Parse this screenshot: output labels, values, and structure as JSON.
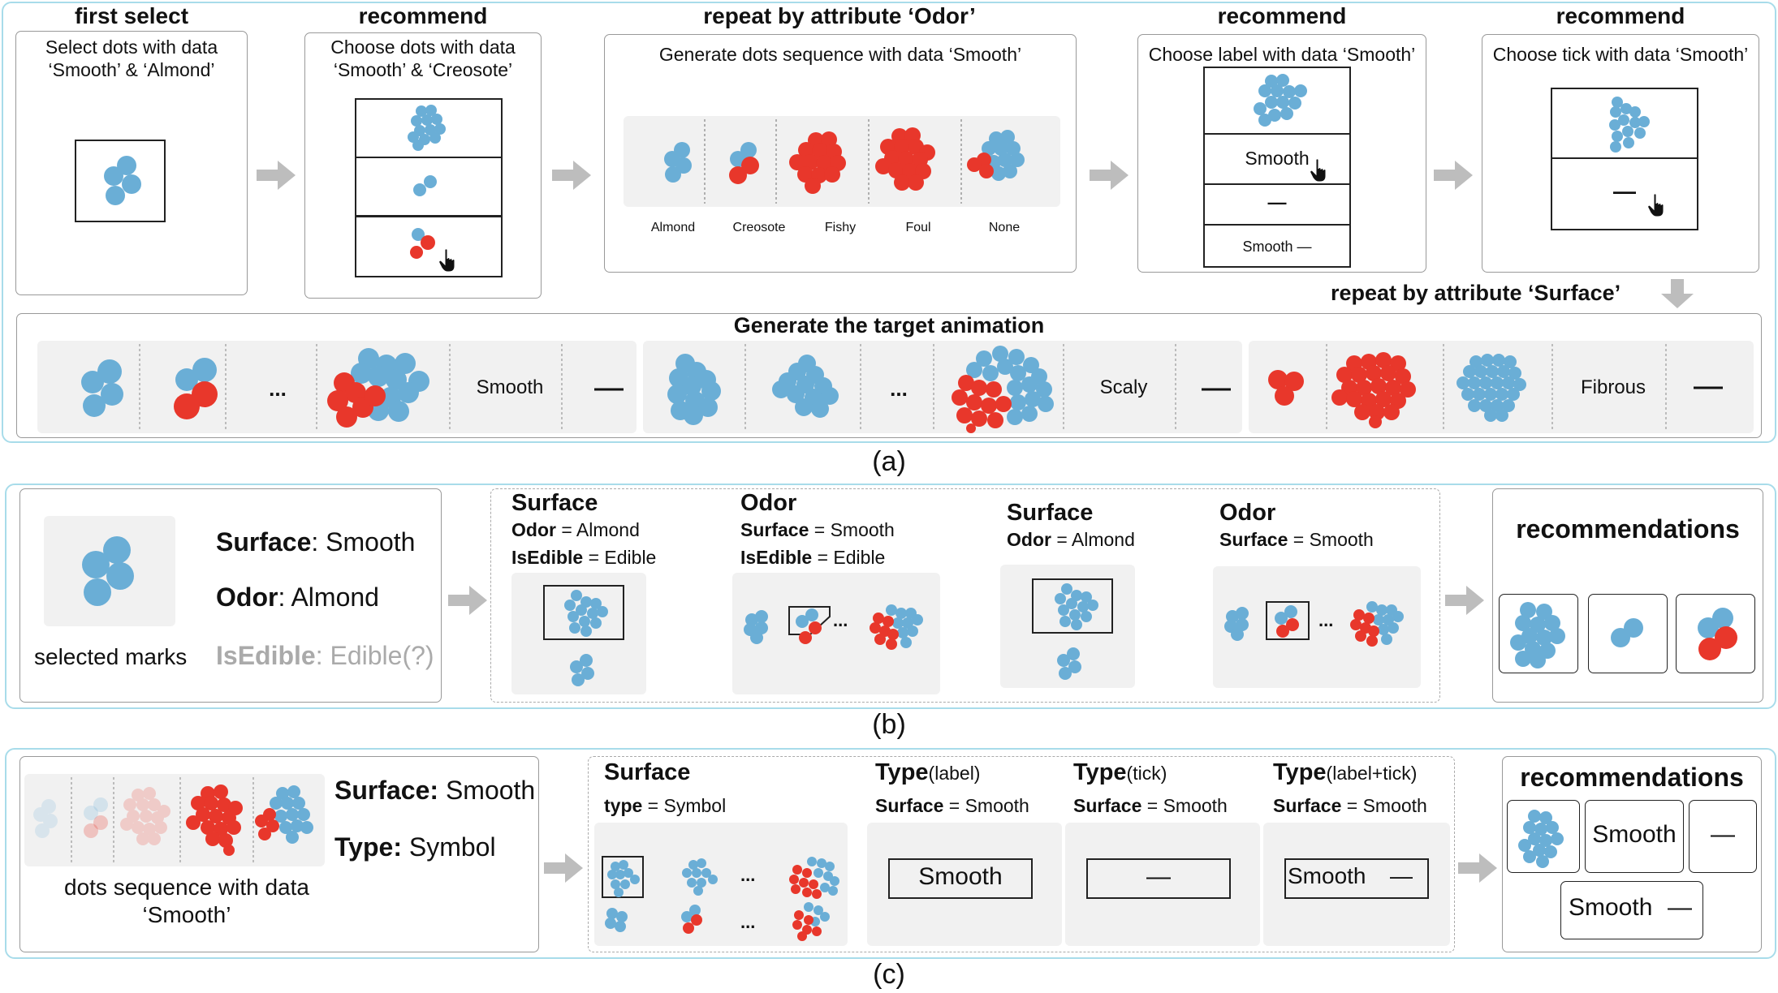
{
  "colors": {
    "blue": "#6aaed6",
    "red": "#e8372b",
    "panel_border": "#a8dcea",
    "gray_bg": "#f1f1f1",
    "muted": "#aaaaaa"
  },
  "panel_a": {
    "caption": "(a)",
    "first_select": {
      "title": "first select",
      "desc1": "Select dots with data",
      "desc2": "‘Smooth’ & ‘Almond’"
    },
    "recommend1": {
      "title": "recommend",
      "desc1": "Choose dots with data",
      "desc2": "‘Smooth’ & ‘Creosote’"
    },
    "repeat_odor": {
      "title": "repeat by attribute ‘Odor’",
      "desc": "Generate dots sequence with data ‘Smooth’",
      "labels": [
        "Almond",
        "Creosote",
        "Fishy",
        "Foul",
        "None"
      ]
    },
    "recommend2": {
      "title": "recommend",
      "desc": "Choose label with data ‘Smooth’",
      "opt_label": "Smooth",
      "opt_tick": "—",
      "opt_both": "Smooth —"
    },
    "recommend3": {
      "title": "recommend",
      "desc": "Choose tick with data ‘Smooth’",
      "opt_tick": "—"
    },
    "repeat_surface": "repeat by attribute ‘Surface’",
    "target": {
      "title": "Generate the target animation",
      "ellipsis": "...",
      "groups": [
        {
          "label": "Smooth",
          "tick": "—"
        },
        {
          "label": "Scaly",
          "tick": "—"
        },
        {
          "label": "Fibrous",
          "tick": "—"
        }
      ]
    }
  },
  "panel_b": {
    "caption": "(b)",
    "selected": {
      "caption": "selected marks",
      "l1_key": "Surface",
      "l1_val": ": Smooth",
      "l2_key": "Odor",
      "l2_val": ": Almond",
      "l3_key": "IsEdible",
      "l3_val": ": Edible(?)"
    },
    "c1": {
      "title": "Surface",
      "r1_key": "Odor",
      "r1_val": " = Almond",
      "r2_key": "IsEdible",
      "r2_val": " = Edible"
    },
    "c2": {
      "title": "Odor",
      "r1_key": "Surface",
      "r1_val": " = Smooth",
      "r2_key": "IsEdible",
      "r2_val": " = Edible",
      "ellipsis": "..."
    },
    "c3": {
      "title": "Surface",
      "r1_key": "Odor",
      "r1_val": " = Almond"
    },
    "c4": {
      "title": "Odor",
      "r1_key": "Surface",
      "r1_val": " = Smooth",
      "ellipsis": "..."
    },
    "rec_title": "recommendations"
  },
  "panel_c": {
    "caption": "(c)",
    "seq": {
      "caption1": "dots sequence with data",
      "caption2": "‘Smooth’",
      "l1_key": "Surface:",
      "l1_val": " Smooth",
      "l2_key": "Type:",
      "l2_val": " Symbol"
    },
    "c1": {
      "title": "Surface",
      "r1_key": "type",
      "r1_val": " = Symbol",
      "dots": "......",
      "ellipsis": "..."
    },
    "c2": {
      "title": "Type",
      "title_sub": "(label)",
      "r1_key": "Surface",
      "r1_val": " = Smooth",
      "box": "Smooth"
    },
    "c3": {
      "title": "Type",
      "title_sub": "(tick)",
      "r1_key": "Surface",
      "r1_val": " = Smooth",
      "box": "—"
    },
    "c4": {
      "title": "Type",
      "title_sub": "(label+tick)",
      "r1_key": "Surface",
      "r1_val": " = Smooth",
      "box_label": "Smooth",
      "box_tick": "—"
    },
    "rec_title": "recommendations",
    "rec_label": "Smooth",
    "rec_tick": "—",
    "rec_both_label": "Smooth",
    "rec_both_tick": "—"
  }
}
